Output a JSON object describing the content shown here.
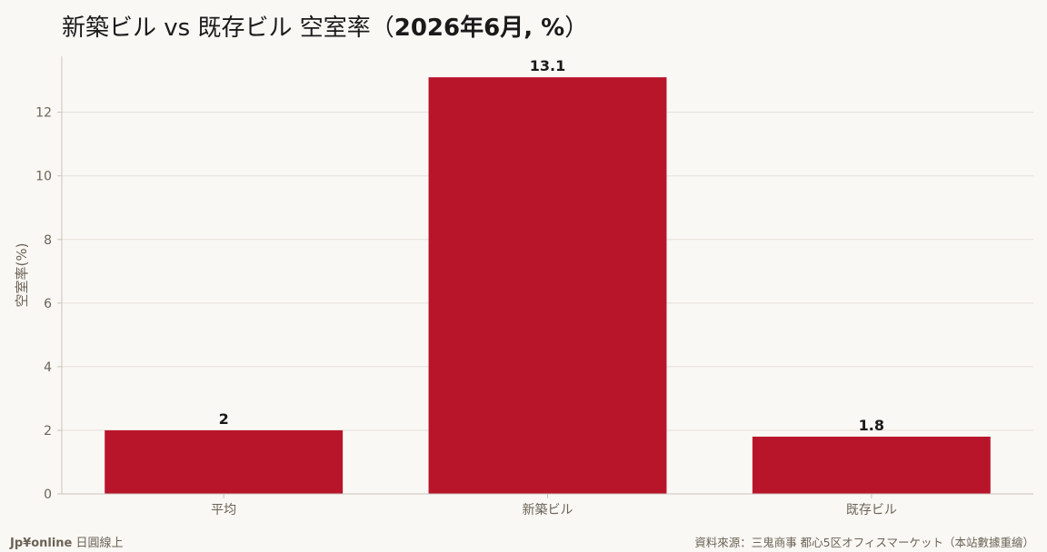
{
  "title": {
    "main": "新築ビル vs 既存ビル 空室率",
    "paren_open": "（",
    "emph": "2026年6月, %",
    "paren_close": "）"
  },
  "footer": {
    "brand": "Jp¥online",
    "brand_suffix": "日圓線上",
    "source": "資料來源：三鬼商事 都心5区オフィスマーケット（本站數據重繪）"
  },
  "colors": {
    "bar": "#b8152b",
    "background": "#faf8f5",
    "grid": "#e4e0da",
    "axis_text": "#6b6355"
  },
  "chart_data": {
    "type": "bar",
    "categories": [
      "平均",
      "新築ビル",
      "既存ビル"
    ],
    "values": [
      2,
      13.1,
      1.8
    ],
    "data_labels": [
      "2",
      "13.1",
      "1.8"
    ],
    "xlabel": "",
    "ylabel": "空室率(%)",
    "ylim": [
      0,
      13.76
    ],
    "yticks": [
      0,
      2,
      4,
      6,
      8,
      10,
      12
    ],
    "grid": true,
    "legend": "none"
  }
}
